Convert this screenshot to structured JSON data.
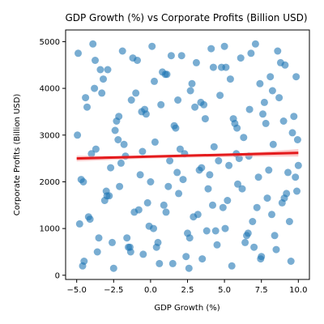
{
  "colors": {
    "points": "#1f77b4",
    "trend": "#e41a1c",
    "band": "#f7a1a1",
    "axis": "#000000"
  },
  "chart_data": {
    "type": "scatter",
    "title": "GDP Growth (%) vs Corporate Profits (Billion USD)",
    "xlabel": "GDP Growth (%)",
    "ylabel": "Corporate Profits (Billion USD)",
    "xlim": [
      -5.75,
      10.75
    ],
    "ylim": [
      -90,
      5250
    ],
    "x_ticks": [
      -5.0,
      -2.5,
      0.0,
      2.5,
      5.0,
      7.5,
      10.0
    ],
    "x_tick_labels": [
      "−5.0",
      "−2.5",
      "0.0",
      "2.5",
      "5.0",
      "7.5",
      "10.0"
    ],
    "y_ticks": [
      0,
      1000,
      2000,
      3000,
      4000,
      5000
    ],
    "y_tick_labels": [
      "0",
      "1000",
      "2000",
      "3000",
      "4000",
      "5000"
    ],
    "grid": false,
    "legend": "none",
    "point_alpha": 0.6,
    "trend_line": {
      "x": [
        -5.0,
        10.0
      ],
      "y": [
        2500,
        2620
      ]
    },
    "confidence_band": {
      "x": [
        -5.0,
        -2.5,
        0.0,
        2.5,
        5.0,
        7.5,
        10.0
      ],
      "lower": [
        2440,
        2470,
        2500,
        2520,
        2530,
        2540,
        2540
      ],
      "upper": [
        2560,
        2550,
        2550,
        2560,
        2590,
        2640,
        2700
      ]
    },
    "x": [
      -4.9,
      -4.7,
      -4.5,
      -4.3,
      -4.1,
      -3.9,
      -3.7,
      -3.5,
      -3.3,
      -3.1,
      -2.9,
      -2.7,
      -2.5,
      -2.3,
      -2.1,
      -1.9,
      -1.7,
      -1.5,
      -1.3,
      -1.1,
      -0.9,
      -0.7,
      -0.5,
      -0.3,
      -0.1,
      0.1,
      0.3,
      0.5,
      0.7,
      0.9,
      1.1,
      1.3,
      1.5,
      1.7,
      1.9,
      2.1,
      2.3,
      2.5,
      2.7,
      2.9,
      3.1,
      3.3,
      3.5,
      3.7,
      3.9,
      4.1,
      4.3,
      4.5,
      4.7,
      4.9,
      5.1,
      5.3,
      5.5,
      5.7,
      5.9,
      6.1,
      6.3,
      6.5,
      6.7,
      6.9,
      7.1,
      7.3,
      7.5,
      7.7,
      7.9,
      8.1,
      8.3,
      8.5,
      8.7,
      8.9,
      9.1,
      9.3,
      9.5,
      9.7,
      9.9,
      -4.8,
      -4.4,
      -4.0,
      -3.6,
      -3.2,
      -2.8,
      -2.4,
      -2.0,
      -1.6,
      -1.2,
      -0.8,
      -0.4,
      0.0,
      0.4,
      0.8,
      1.2,
      1.6,
      2.0,
      2.4,
      2.8,
      3.2,
      3.6,
      4.0,
      4.4,
      4.8,
      5.2,
      5.6,
      6.0,
      6.4,
      6.8,
      7.2,
      7.6,
      8.0,
      8.4,
      8.8,
      9.2,
      9.6,
      10.0,
      -4.6,
      -3.8,
      -3.0,
      -2.2,
      -1.4,
      -0.6,
      0.2,
      1.0,
      1.8,
      2.6,
      3.4,
      4.2,
      5.0,
      5.8,
      6.6,
      7.4,
      8.2,
      9.0,
      9.8,
      -4.95,
      -4.2,
      -3.4,
      -2.6,
      -1.8,
      -1.0,
      -0.2,
      0.6,
      1.4,
      2.2,
      3.0,
      3.8,
      4.6,
      5.4,
      6.2,
      7.0,
      7.8,
      8.6,
      9.4,
      9.95,
      -4.55,
      -3.75,
      -2.95,
      -2.15,
      -1.35,
      -0.55,
      0.25,
      1.05,
      1.85,
      2.65,
      3.45,
      4.25,
      5.05,
      5.85,
      6.65,
      7.45,
      8.25,
      9.05,
      9.85
    ],
    "y": [
      4750,
      2050,
      300,
      3600,
      1200,
      4950,
      2700,
      800,
      3900,
      1600,
      4400,
      2300,
      150,
      3300,
      1900,
      4800,
      2550,
      600,
      3750,
      1350,
      4600,
      2150,
      450,
      3450,
      1050,
      4900,
      2850,
      700,
      3650,
      1500,
      4300,
      2450,
      250,
      3150,
      1750,
      4700,
      2600,
      900,
      3950,
      1250,
      4550,
      2250,
      350,
      3350,
      1850,
      4850,
      2750,
      650,
      3850,
      1450,
      4450,
      2350,
      200,
      3250,
      1950,
      4650,
      2950,
      850,
      3550,
      1150,
      4950,
      2100,
      400,
      3700,
      1650,
      4250,
      2800,
      550,
      3800,
      1550,
      4500,
      2200,
      300,
      3400,
      1800,
      1100,
      3800,
      2600,
      500,
      4200,
      1700,
      3100,
      2400,
      800,
      4650,
      1400,
      3550,
      2000,
      600,
      4350,
      1900,
      3200,
      2700,
      400,
      4100,
      1300,
      3650,
      2150,
      950,
      4450,
      1600,
      3350,
      2500,
      700,
      4750,
      1450,
      3450,
      2250,
      850,
      4550,
      1750,
      3050,
      2350,
      200,
      4000,
      1800,
      2900,
      600,
      3500,
      1000,
      4300,
      2200,
      150,
      3700,
      1500,
      4900,
      2600,
      900,
      4100,
      1300,
      3300,
      2100,
      3000,
      1250,
      4400,
      700,
      2800,
      3900,
      1550,
      250,
      4700,
      2050,
      3600,
      950,
      2450,
      4200,
      1850,
      600,
      3250,
      4800,
      1150,
      2900,
      2000,
      4600,
      1700,
      3400,
      500,
      2650,
      4150,
      1350,
      3750,
      800,
      2300,
      4450,
      1000,
      3150,
      2550,
      350,
      3950,
      1650,
      4250
    ]
  }
}
